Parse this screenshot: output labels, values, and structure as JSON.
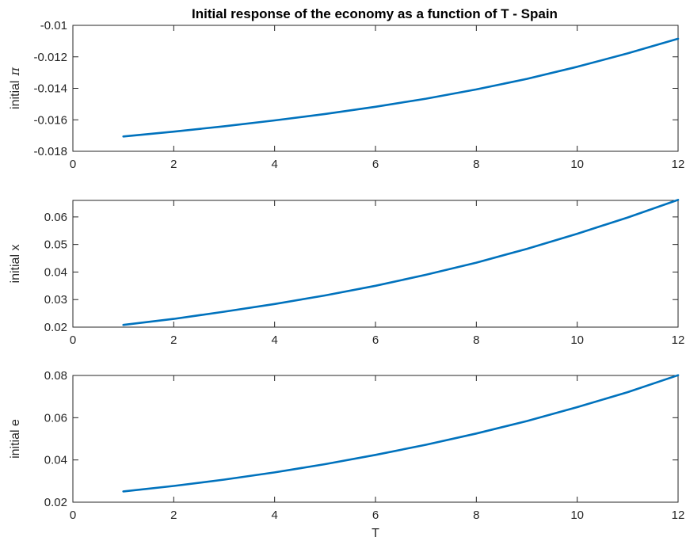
{
  "figure": {
    "title": "Initial response of the economy as a function of T - Spain",
    "line_color": "#0072BD"
  },
  "chart_data": [
    {
      "type": "line",
      "xlabel": "",
      "ylabel": "initial",
      "ylabel_symbol": "π",
      "xlim": [
        0,
        12
      ],
      "ylim": [
        -0.018,
        -0.01
      ],
      "xticks": [
        0,
        2,
        4,
        6,
        8,
        10,
        12
      ],
      "yticks": [
        -0.018,
        -0.016,
        -0.014,
        -0.012,
        -0.01
      ],
      "xtick_labels": [
        "0",
        "2",
        "4",
        "6",
        "8",
        "10",
        "12"
      ],
      "ytick_labels": [
        "-0.018",
        "-0.016",
        "-0.014",
        "-0.012",
        "-0.01"
      ],
      "grid": false,
      "x": [
        1,
        2,
        3,
        4,
        5,
        6,
        7,
        8,
        9,
        10,
        11,
        12
      ],
      "y": [
        -0.01706,
        -0.01675,
        -0.01641,
        -0.01604,
        -0.01563,
        -0.01517,
        -0.01466,
        -0.01407,
        -0.0134,
        -0.01263,
        -0.01178,
        -0.01085
      ]
    },
    {
      "type": "line",
      "xlabel": "",
      "ylabel": "initial x",
      "ylabel_symbol": "",
      "xlim": [
        0,
        12
      ],
      "ylim": [
        0.02,
        0.066
      ],
      "xticks": [
        0,
        2,
        4,
        6,
        8,
        10,
        12
      ],
      "yticks": [
        0.02,
        0.03,
        0.04,
        0.05,
        0.06
      ],
      "xtick_labels": [
        "0",
        "2",
        "4",
        "6",
        "8",
        "10",
        "12"
      ],
      "ytick_labels": [
        "0.02",
        "0.03",
        "0.04",
        "0.05",
        "0.06"
      ],
      "grid": false,
      "x": [
        1,
        2,
        3,
        4,
        5,
        6,
        7,
        8,
        9,
        10,
        11,
        12
      ],
      "y": [
        0.0208,
        0.023,
        0.0256,
        0.0284,
        0.0315,
        0.035,
        0.039,
        0.0434,
        0.0484,
        0.0539,
        0.0598,
        0.0662
      ]
    },
    {
      "type": "line",
      "xlabel": "T",
      "ylabel": "initial e",
      "ylabel_symbol": "",
      "xlim": [
        0,
        12
      ],
      "ylim": [
        0.02,
        0.08
      ],
      "xticks": [
        0,
        2,
        4,
        6,
        8,
        10,
        12
      ],
      "yticks": [
        0.02,
        0.04,
        0.06,
        0.08
      ],
      "xtick_labels": [
        "0",
        "2",
        "4",
        "6",
        "8",
        "10",
        "12"
      ],
      "ytick_labels": [
        "0.02",
        "0.04",
        "0.06",
        "0.08"
      ],
      "grid": false,
      "x": [
        1,
        2,
        3,
        4,
        5,
        6,
        7,
        8,
        9,
        10,
        11,
        12
      ],
      "y": [
        0.0251,
        0.0277,
        0.0307,
        0.0341,
        0.038,
        0.0424,
        0.0472,
        0.0525,
        0.0584,
        0.065,
        0.0721,
        0.0801
      ]
    }
  ]
}
